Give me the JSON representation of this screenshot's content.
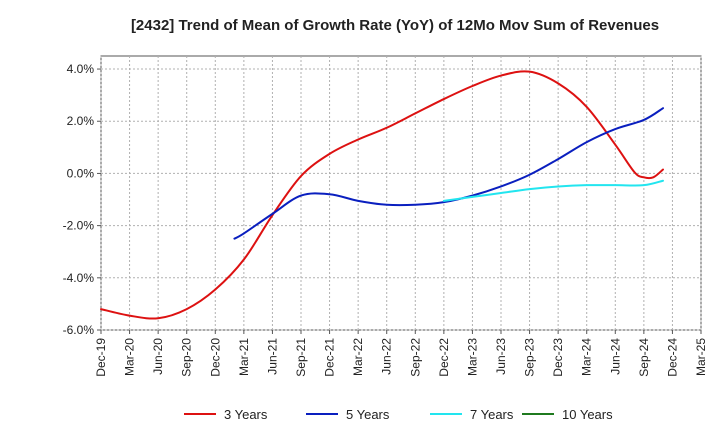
{
  "chart_data": {
    "type": "line",
    "title": "[2432]  Trend of Mean of Growth Rate (YoY) of 12Mo Mov Sum of Revenues",
    "xlabel": "",
    "ylabel": "",
    "ylim": [
      -6.0,
      4.5
    ],
    "y_ticks": [
      -6.0,
      -4.0,
      -2.0,
      0.0,
      2.0,
      4.0
    ],
    "y_tick_labels": [
      "-6.0%",
      "-4.0%",
      "-2.0%",
      "0.0%",
      "2.0%",
      "4.0%"
    ],
    "x_tick_labels": [
      "Dec-19",
      "Mar-20",
      "Jun-20",
      "Sep-20",
      "Dec-20",
      "Mar-21",
      "Jun-21",
      "Sep-21",
      "Dec-21",
      "Mar-22",
      "Jun-22",
      "Sep-22",
      "Dec-22",
      "Mar-23",
      "Jun-23",
      "Sep-23",
      "Dec-23",
      "Mar-24",
      "Jun-24",
      "Sep-24",
      "Dec-24",
      "Mar-25"
    ],
    "grid": true,
    "legend_position": "bottom",
    "series": [
      {
        "name": "3 Years",
        "color": "#dd1111",
        "points": [
          [
            0,
            -5.2
          ],
          [
            1,
            -5.45
          ],
          [
            2,
            -5.55
          ],
          [
            3,
            -5.2
          ],
          [
            4,
            -4.45
          ],
          [
            5,
            -3.3
          ],
          [
            6,
            -1.6
          ],
          [
            7,
            -0.1
          ],
          [
            8,
            0.75
          ],
          [
            9,
            1.3
          ],
          [
            10,
            1.75
          ],
          [
            11,
            2.3
          ],
          [
            12,
            2.85
          ],
          [
            13,
            3.35
          ],
          [
            14,
            3.75
          ],
          [
            15,
            3.9
          ],
          [
            16,
            3.45
          ],
          [
            17,
            2.55
          ],
          [
            18,
            1.1
          ],
          [
            18.67,
            0.05
          ],
          [
            19,
            -0.15
          ],
          [
            19.33,
            -0.15
          ],
          [
            19.67,
            0.15
          ]
        ]
      },
      {
        "name": "5 Years",
        "color": "#0a1fbf",
        "points": [
          [
            4.67,
            -2.5
          ],
          [
            5,
            -2.3
          ],
          [
            6,
            -1.55
          ],
          [
            7,
            -0.85
          ],
          [
            8,
            -0.8
          ],
          [
            9,
            -1.05
          ],
          [
            10,
            -1.2
          ],
          [
            11,
            -1.2
          ],
          [
            12,
            -1.1
          ],
          [
            13,
            -0.85
          ],
          [
            14,
            -0.5
          ],
          [
            15,
            -0.05
          ],
          [
            16,
            0.55
          ],
          [
            17,
            1.2
          ],
          [
            18,
            1.7
          ],
          [
            19,
            2.05
          ],
          [
            19.67,
            2.5
          ]
        ]
      },
      {
        "name": "7 Years",
        "color": "#22e5ef",
        "points": [
          [
            12,
            -1.05
          ],
          [
            13,
            -0.9
          ],
          [
            14,
            -0.75
          ],
          [
            15,
            -0.6
          ],
          [
            16,
            -0.5
          ],
          [
            17,
            -0.45
          ],
          [
            18,
            -0.45
          ],
          [
            19,
            -0.45
          ],
          [
            19.67,
            -0.28
          ]
        ]
      },
      {
        "name": "10 Years",
        "color": "#1f7a1f",
        "points": []
      }
    ]
  }
}
